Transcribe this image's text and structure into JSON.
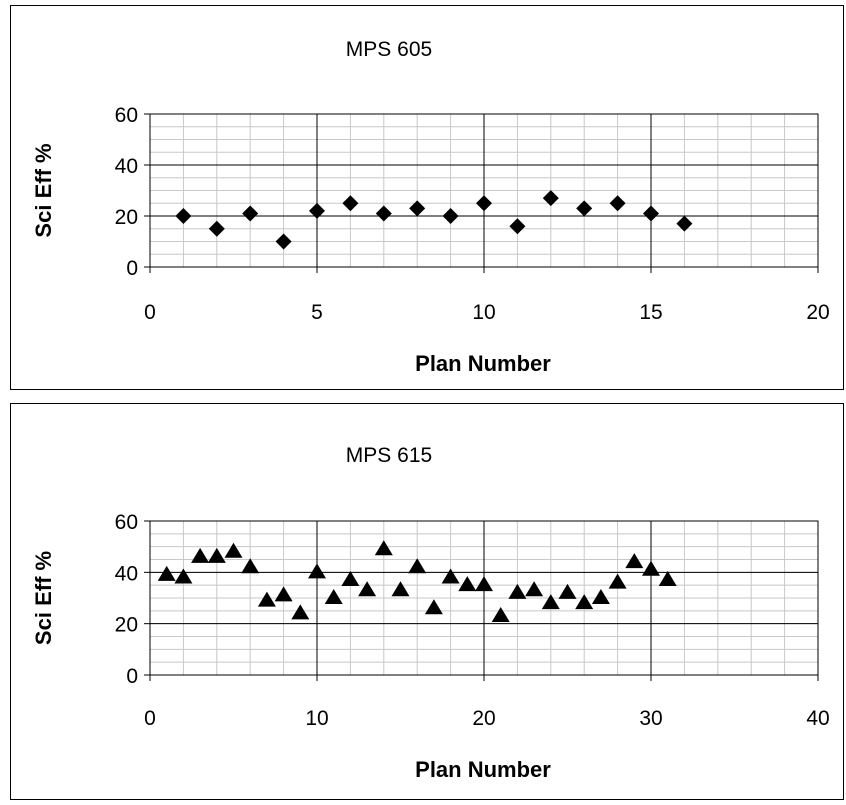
{
  "chart_data": [
    {
      "type": "scatter",
      "title": "MPS 605",
      "xlabel": "Plan Number",
      "ylabel": "Sci Eff %",
      "xlim": [
        0,
        20
      ],
      "ylim": [
        0,
        60
      ],
      "xticks": [
        "0",
        "5",
        "10",
        "15",
        "20"
      ],
      "yticks": [
        "0",
        "20",
        "40",
        "60"
      ],
      "marker": "diamond",
      "grid": true,
      "x": [
        1,
        2,
        3,
        4,
        5,
        6,
        7,
        8,
        9,
        10,
        11,
        12,
        13,
        14,
        15,
        16
      ],
      "y": [
        20,
        15,
        21,
        10,
        22,
        25,
        21,
        23,
        20,
        25,
        16,
        27,
        23,
        25,
        21,
        17
      ]
    },
    {
      "type": "scatter",
      "title": "MPS 615",
      "xlabel": "Plan Number",
      "ylabel": "Sci Eff %",
      "xlim": [
        0,
        40
      ],
      "ylim": [
        0,
        60
      ],
      "xticks": [
        "0",
        "10",
        "20",
        "30",
        "40"
      ],
      "yticks": [
        "0",
        "20",
        "40",
        "60"
      ],
      "marker": "triangle",
      "grid": true,
      "x": [
        1,
        2,
        3,
        4,
        5,
        6,
        7,
        8,
        9,
        10,
        11,
        12,
        13,
        14,
        15,
        16,
        17,
        18,
        19,
        20,
        21,
        22,
        23,
        24,
        25,
        26,
        27,
        28,
        29,
        30,
        31
      ],
      "y": [
        39,
        38,
        46,
        46,
        48,
        42,
        29,
        31,
        24,
        40,
        30,
        37,
        33,
        49,
        33,
        42,
        26,
        38,
        35,
        35,
        23,
        32,
        33,
        28,
        32,
        28,
        30,
        36,
        44,
        41,
        37
      ]
    }
  ]
}
